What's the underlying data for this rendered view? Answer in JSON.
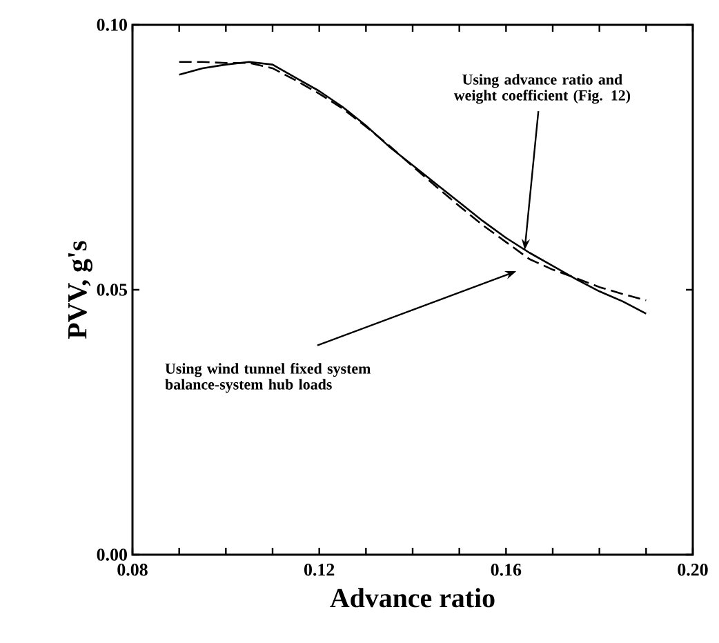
{
  "chart_data": {
    "type": "line",
    "xlabel": "Advance ratio",
    "ylabel": "PVV, g's",
    "xlim": [
      0.08,
      0.2
    ],
    "ylim": [
      0.0,
      0.1
    ],
    "xticks": [
      {
        "value": 0.08,
        "label": "0.08"
      },
      {
        "value": 0.09,
        "label": null
      },
      {
        "value": 0.1,
        "label": null
      },
      {
        "value": 0.11,
        "label": null
      },
      {
        "value": 0.12,
        "label": "0.12"
      },
      {
        "value": 0.13,
        "label": null
      },
      {
        "value": 0.14,
        "label": null
      },
      {
        "value": 0.15,
        "label": null
      },
      {
        "value": 0.16,
        "label": "0.16"
      },
      {
        "value": 0.17,
        "label": null
      },
      {
        "value": 0.18,
        "label": null
      },
      {
        "value": 0.19,
        "label": null
      },
      {
        "value": 0.2,
        "label": "0.20"
      }
    ],
    "yticks": [
      {
        "value": 0.0,
        "label": "0.00"
      },
      {
        "value": 0.05,
        "label": "0.05"
      },
      {
        "value": 0.1,
        "label": "0.10"
      }
    ],
    "grid": false,
    "marker": "none",
    "series": [
      {
        "color": "#000000",
        "line_style": "solid",
        "x": [
          0.09,
          0.095,
          0.1,
          0.105,
          0.11,
          0.115,
          0.12,
          0.125,
          0.13,
          0.135,
          0.14,
          0.145,
          0.15,
          0.155,
          0.16,
          0.165,
          0.17,
          0.175,
          0.18,
          0.185,
          0.19
        ],
        "values": [
          0.0906,
          0.0918,
          0.0925,
          0.093,
          0.0925,
          0.09,
          0.0875,
          0.0845,
          0.081,
          0.077,
          0.0735,
          0.07,
          0.0665,
          0.063,
          0.0598,
          0.057,
          0.0545,
          0.052,
          0.0497,
          0.0478,
          0.0455
        ]
      },
      {
        "color": "#000000",
        "line_style": "dashed",
        "x": [
          0.09,
          0.095,
          0.1,
          0.105,
          0.11,
          0.115,
          0.12,
          0.125,
          0.13,
          0.135,
          0.14,
          0.145,
          0.15,
          0.155,
          0.16,
          0.165,
          0.17,
          0.175,
          0.18,
          0.185,
          0.19
        ],
        "values": [
          0.093,
          0.093,
          0.0928,
          0.0928,
          0.0918,
          0.0895,
          0.087,
          0.0842,
          0.0808,
          0.0772,
          0.0733,
          0.0695,
          0.0658,
          0.0622,
          0.059,
          0.0558,
          0.0538,
          0.0522,
          0.0505,
          0.0492,
          0.048
        ]
      }
    ],
    "annotations": [
      {
        "text": "Using advance ratio and weight coefficient (Fig. 12)",
        "x": 0.164,
        "y": 0.0575
      },
      "Using wind tunnel fixed system balance-system hub loads"
    ]
  }
}
